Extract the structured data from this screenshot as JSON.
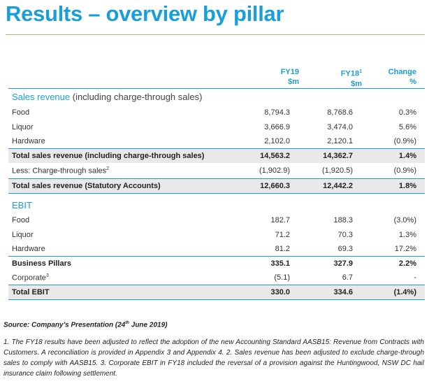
{
  "title": "Results – overview by pillar",
  "headers": {
    "fy19_l1": "FY19",
    "fy19_l2": "$m",
    "fy18_l1": "FY18",
    "fy18_sup": "1",
    "fy18_l2": "$m",
    "change_l1": "Change",
    "change_l2": "%"
  },
  "sales": {
    "heading": "Sales revenue",
    "heading_note": " (including charge-through sales)",
    "rows": [
      {
        "label": "Food",
        "fy19": "8,794.3",
        "fy18": "8,768.6",
        "change": "0.3%"
      },
      {
        "label": "Liquor",
        "fy19": "3,666.9",
        "fy18": "3,474.0",
        "change": "5.6%"
      },
      {
        "label": "Hardware",
        "fy19": "2,102.0",
        "fy18": "2,120.1",
        "change": "(0.9%)"
      },
      {
        "label": "Total sales revenue (including charge-through sales)",
        "fy19": "14,563.2",
        "fy18": "14,362.7",
        "change": "1.4%"
      },
      {
        "label": "Less: Charge-through sales",
        "sup": "2",
        "fy19": "(1,902.9)",
        "fy18": "(1,920.5)",
        "change": "(0.9%)"
      },
      {
        "label": "Total sales revenue (Statutory Accounts)",
        "fy19": "12,660.3",
        "fy18": "12,442.2",
        "change": "1.8%"
      }
    ]
  },
  "ebit": {
    "heading": "EBIT",
    "rows": [
      {
        "label": "Food",
        "fy19": "182.7",
        "fy18": "188.3",
        "change": "(3.0%)"
      },
      {
        "label": "Liquor",
        "fy19": "71.2",
        "fy18": "70.3",
        "change": "1.3%"
      },
      {
        "label": "Hardware",
        "fy19": "81.2",
        "fy18": "69.3",
        "change": "17.2%"
      },
      {
        "label": "Business Pillars",
        "fy19": "335.1",
        "fy18": "327.9",
        "change": "2.2%"
      },
      {
        "label": "Corporate",
        "sup": "3",
        "fy19": "(5.1)",
        "fy18": "6.7",
        "change": "-"
      },
      {
        "label": "Total EBIT",
        "fy19": "330.0",
        "fy18": "334.6",
        "change": "(1.4%)"
      }
    ]
  },
  "source": {
    "prefix": "Source: Company’s Presentation (24",
    "sup": "th",
    "suffix": " June 2019)"
  },
  "footnote": "1. The FY18 results have been adjusted to reflect the adoption of the new Accounting Standard AASB15: Revenue from Contracts with Customers. A reconciliation is provided in Appendix 3 and Appendix 4. 2. Sales revenue has been adjusted to exclude charge-through sales to comply with AASB15. 3. Corporate EBIT in FY18 included the reversal of a provision against the Huntingwood, NSW DC hail insurance claim following settlement.",
  "colors": {
    "accent": "#1a9ed8",
    "rule": "#f0a46a",
    "shade": "#e9e9e9"
  }
}
